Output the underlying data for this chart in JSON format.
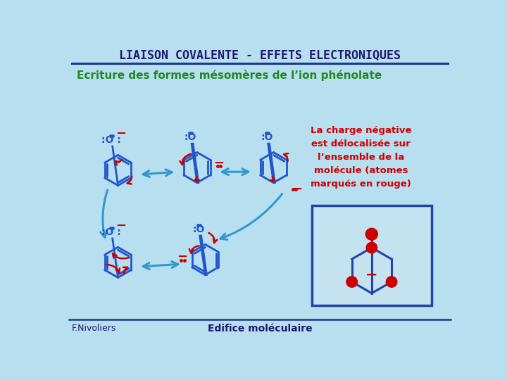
{
  "title": "LIAISON COVALENTE - EFFETS ELECTRONIQUES",
  "subtitle": "Ecriture des formes mésomères de l’ion phénolate",
  "footer_left": "F.Nivoliers",
  "footer_center": "Edifice moléculaire",
  "bg_color": "#b8dff0",
  "title_color": "#1a1a6e",
  "subtitle_color": "#228822",
  "dark_blue": "#1a3a8a",
  "medium_blue": "#2255cc",
  "arrow_blue": "#3399cc",
  "red_color": "#cc0000",
  "annotation_color": "#cc0000",
  "annotation_text": "La charge négative\nest délocalisée sur\nl’ensemble de la\nmolécule (atomes\nmarqués en rouge)",
  "footer_color": "#1a1a6e",
  "line_color": "#1a3a8a",
  "box_fill": "#cce8f4"
}
